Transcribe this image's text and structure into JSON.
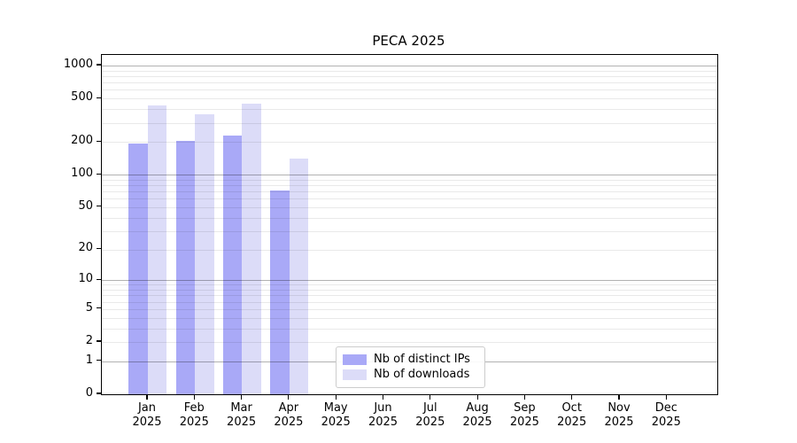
{
  "title": "PECA 2025",
  "legend": {
    "items": [
      {
        "label": "Nb of distinct IPs",
        "color": "#a9a9f7"
      },
      {
        "label": "Nb of downloads",
        "color": "#dcdcf8"
      }
    ]
  },
  "chart_data": {
    "type": "bar",
    "title": "PECA 2025",
    "categories": [
      "Jan 2025",
      "Feb 2025",
      "Mar 2025",
      "Apr 2025",
      "May 2025",
      "Jun 2025",
      "Jul 2025",
      "Aug 2025",
      "Sep 2025",
      "Oct 2025",
      "Nov 2025",
      "Dec 2025"
    ],
    "series": [
      {
        "name": "Nb of distinct IPs",
        "color": "#a9a9f7",
        "values": [
          193,
          204,
          230,
          71,
          0,
          0,
          0,
          0,
          0,
          0,
          0,
          0
        ]
      },
      {
        "name": "Nb of downloads",
        "color": "#dcdcf8",
        "values": [
          434,
          358,
          448,
          140,
          0,
          0,
          0,
          0,
          0,
          0,
          0,
          0
        ]
      }
    ],
    "xlabel": "",
    "ylabel": "",
    "y_scale": "log1p",
    "y_ticks": [
      1000,
      500,
      200,
      100,
      50,
      20,
      10,
      5,
      2,
      1,
      0
    ],
    "ylim": [
      0,
      1250
    ],
    "grid": {
      "major_at": [
        1,
        10,
        100,
        1000
      ],
      "minor_multiples": [
        2,
        3,
        4,
        5,
        6,
        7,
        8,
        9
      ],
      "minor_decades": [
        1,
        10,
        100
      ]
    },
    "legend_position": "lower center-left",
    "colors": {
      "axis": "#000000",
      "major_grid": "rgba(0,0,0,0.30)",
      "minor_grid": "rgba(0,0,0,0.085)",
      "background": "#ffffff"
    }
  }
}
